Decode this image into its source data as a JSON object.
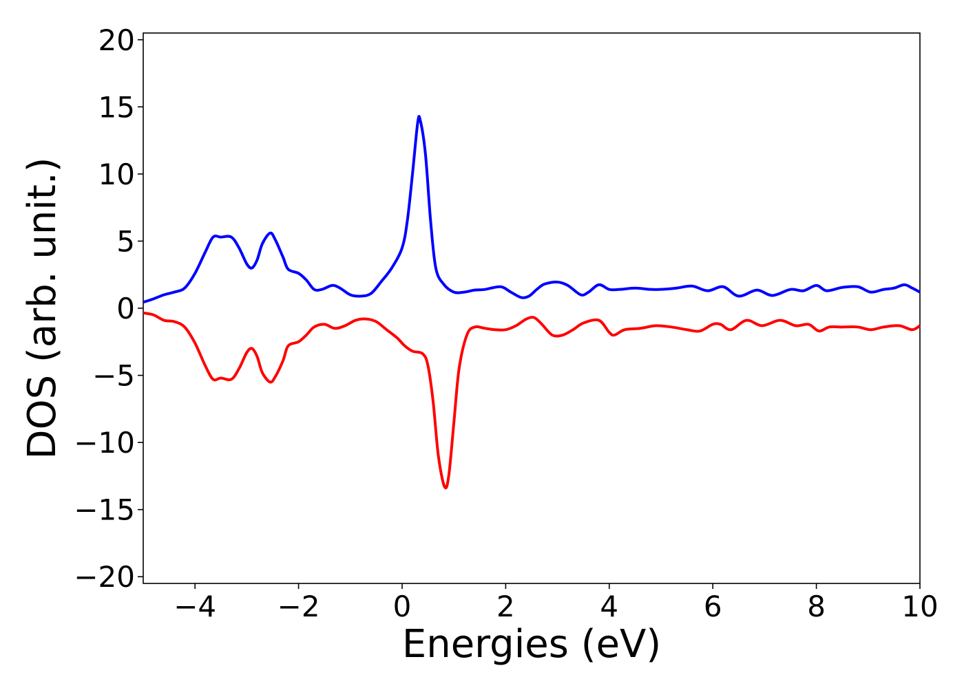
{
  "chart_data": {
    "type": "line",
    "title": "",
    "xlabel": "Energies (eV)",
    "ylabel": "DOS (arb. unit.)",
    "xlim": [
      -5,
      10
    ],
    "ylim": [
      -20.5,
      20.5
    ],
    "xticks": [
      -4,
      -2,
      0,
      2,
      4,
      6,
      8,
      10
    ],
    "xtick_labels": [
      "−4",
      "−2",
      "0",
      "2",
      "4",
      "6",
      "8",
      "10"
    ],
    "yticks": [
      20,
      15,
      10,
      5,
      0,
      -5,
      -10,
      -15,
      -20
    ],
    "ytick_labels": [
      "20",
      "15",
      "10",
      "5",
      "0",
      "−5",
      "−10",
      "−15",
      "−20"
    ],
    "grid": false,
    "legend": false,
    "series": [
      {
        "color": "#0000ff",
        "points": [
          [
            -5.0,
            0.45
          ],
          [
            -4.8,
            0.7
          ],
          [
            -4.6,
            1.0
          ],
          [
            -4.4,
            1.2
          ],
          [
            -4.2,
            1.5
          ],
          [
            -4.0,
            2.6
          ],
          [
            -3.8,
            4.2
          ],
          [
            -3.65,
            5.3
          ],
          [
            -3.5,
            5.3
          ],
          [
            -3.3,
            5.3
          ],
          [
            -3.15,
            4.5
          ],
          [
            -3.0,
            3.3
          ],
          [
            -2.9,
            3.0
          ],
          [
            -2.8,
            3.6
          ],
          [
            -2.7,
            4.8
          ],
          [
            -2.55,
            5.6
          ],
          [
            -2.45,
            5.1
          ],
          [
            -2.3,
            3.8
          ],
          [
            -2.2,
            2.9
          ],
          [
            -2.0,
            2.6
          ],
          [
            -1.85,
            2.1
          ],
          [
            -1.7,
            1.4
          ],
          [
            -1.55,
            1.4
          ],
          [
            -1.35,
            1.7
          ],
          [
            -1.2,
            1.5
          ],
          [
            -1.0,
            1.0
          ],
          [
            -0.8,
            0.9
          ],
          [
            -0.6,
            1.1
          ],
          [
            -0.4,
            2.0
          ],
          [
            -0.2,
            3.0
          ],
          [
            0.0,
            4.5
          ],
          [
            0.1,
            6.5
          ],
          [
            0.2,
            10.0
          ],
          [
            0.3,
            13.8
          ],
          [
            0.35,
            14.0
          ],
          [
            0.45,
            11.5
          ],
          [
            0.55,
            6.5
          ],
          [
            0.65,
            3.0
          ],
          [
            0.8,
            1.8
          ],
          [
            1.0,
            1.2
          ],
          [
            1.2,
            1.2
          ],
          [
            1.4,
            1.35
          ],
          [
            1.6,
            1.4
          ],
          [
            1.9,
            1.6
          ],
          [
            2.1,
            1.2
          ],
          [
            2.3,
            0.8
          ],
          [
            2.45,
            0.9
          ],
          [
            2.6,
            1.4
          ],
          [
            2.75,
            1.8
          ],
          [
            3.0,
            1.95
          ],
          [
            3.2,
            1.7
          ],
          [
            3.45,
            1.0
          ],
          [
            3.6,
            1.2
          ],
          [
            3.8,
            1.75
          ],
          [
            4.0,
            1.4
          ],
          [
            4.2,
            1.4
          ],
          [
            4.5,
            1.5
          ],
          [
            4.8,
            1.4
          ],
          [
            5.0,
            1.4
          ],
          [
            5.3,
            1.5
          ],
          [
            5.6,
            1.65
          ],
          [
            5.9,
            1.3
          ],
          [
            6.2,
            1.6
          ],
          [
            6.5,
            0.9
          ],
          [
            6.85,
            1.35
          ],
          [
            7.15,
            0.95
          ],
          [
            7.5,
            1.4
          ],
          [
            7.75,
            1.3
          ],
          [
            8.0,
            1.7
          ],
          [
            8.2,
            1.3
          ],
          [
            8.5,
            1.55
          ],
          [
            8.8,
            1.6
          ],
          [
            9.05,
            1.2
          ],
          [
            9.3,
            1.4
          ],
          [
            9.5,
            1.5
          ],
          [
            9.7,
            1.75
          ],
          [
            9.85,
            1.5
          ],
          [
            10.0,
            1.2
          ]
        ]
      },
      {
        "color": "#ff0000",
        "points": [
          [
            -5.0,
            -0.35
          ],
          [
            -4.8,
            -0.5
          ],
          [
            -4.6,
            -0.9
          ],
          [
            -4.4,
            -1.0
          ],
          [
            -4.2,
            -1.4
          ],
          [
            -4.0,
            -2.6
          ],
          [
            -3.8,
            -4.3
          ],
          [
            -3.65,
            -5.3
          ],
          [
            -3.5,
            -5.2
          ],
          [
            -3.3,
            -5.3
          ],
          [
            -3.15,
            -4.5
          ],
          [
            -3.0,
            -3.3
          ],
          [
            -2.9,
            -3.0
          ],
          [
            -2.8,
            -3.6
          ],
          [
            -2.7,
            -4.8
          ],
          [
            -2.55,
            -5.5
          ],
          [
            -2.45,
            -5.1
          ],
          [
            -2.3,
            -3.9
          ],
          [
            -2.2,
            -2.8
          ],
          [
            -2.0,
            -2.5
          ],
          [
            -1.85,
            -2.0
          ],
          [
            -1.7,
            -1.4
          ],
          [
            -1.5,
            -1.2
          ],
          [
            -1.3,
            -1.5
          ],
          [
            -1.1,
            -1.3
          ],
          [
            -0.9,
            -0.9
          ],
          [
            -0.7,
            -0.8
          ],
          [
            -0.5,
            -1.0
          ],
          [
            -0.3,
            -1.6
          ],
          [
            -0.1,
            -2.2
          ],
          [
            0.05,
            -2.8
          ],
          [
            0.2,
            -3.2
          ],
          [
            0.4,
            -3.4
          ],
          [
            0.5,
            -4.3
          ],
          [
            0.6,
            -7.0
          ],
          [
            0.7,
            -11.0
          ],
          [
            0.82,
            -13.3
          ],
          [
            0.9,
            -12.5
          ],
          [
            1.0,
            -8.5
          ],
          [
            1.1,
            -4.5
          ],
          [
            1.25,
            -2.0
          ],
          [
            1.4,
            -1.4
          ],
          [
            1.6,
            -1.5
          ],
          [
            1.8,
            -1.6
          ],
          [
            2.0,
            -1.6
          ],
          [
            2.2,
            -1.3
          ],
          [
            2.4,
            -0.8
          ],
          [
            2.55,
            -0.7
          ],
          [
            2.7,
            -1.2
          ],
          [
            2.9,
            -2.0
          ],
          [
            3.1,
            -2.0
          ],
          [
            3.3,
            -1.6
          ],
          [
            3.5,
            -1.1
          ],
          [
            3.8,
            -0.9
          ],
          [
            4.0,
            -1.8
          ],
          [
            4.1,
            -2.0
          ],
          [
            4.3,
            -1.6
          ],
          [
            4.6,
            -1.5
          ],
          [
            4.9,
            -1.3
          ],
          [
            5.2,
            -1.4
          ],
          [
            5.5,
            -1.6
          ],
          [
            5.75,
            -1.7
          ],
          [
            6.0,
            -1.2
          ],
          [
            6.15,
            -1.2
          ],
          [
            6.35,
            -1.6
          ],
          [
            6.65,
            -0.9
          ],
          [
            6.95,
            -1.3
          ],
          [
            7.3,
            -0.9
          ],
          [
            7.6,
            -1.3
          ],
          [
            7.85,
            -1.2
          ],
          [
            8.05,
            -1.7
          ],
          [
            8.25,
            -1.4
          ],
          [
            8.5,
            -1.4
          ],
          [
            8.8,
            -1.4
          ],
          [
            9.05,
            -1.6
          ],
          [
            9.3,
            -1.4
          ],
          [
            9.6,
            -1.3
          ],
          [
            9.85,
            -1.6
          ],
          [
            10.0,
            -1.3
          ]
        ]
      }
    ]
  }
}
